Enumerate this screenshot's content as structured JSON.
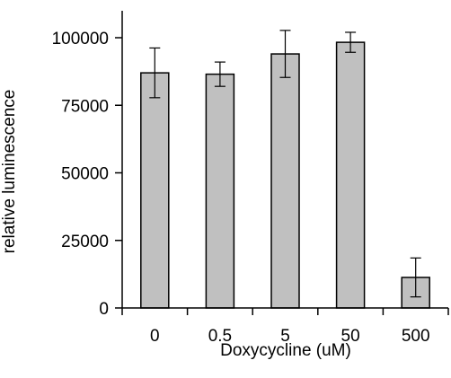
{
  "chart_data": {
    "type": "bar",
    "xlabel": "Doxycycline (uM)",
    "ylabel": "relative luminescence",
    "categories": [
      "0",
      "0.5",
      "5",
      "50",
      "500"
    ],
    "series": [
      {
        "values": [
          87000,
          86500,
          94000,
          98300,
          11300
        ],
        "errors": [
          9200,
          4500,
          8700,
          3700,
          7200
        ]
      }
    ],
    "ylim": [
      0,
      100000
    ],
    "yticks": [
      0,
      25000,
      50000,
      75000,
      100000
    ],
    "ytick_labels": [
      "0",
      "25000",
      "50000",
      "75000",
      "100000"
    ],
    "grid": false,
    "colors": {
      "bar_fill": "#c0c0c0",
      "bar_stroke": "#000000",
      "axis": "#000000"
    }
  }
}
